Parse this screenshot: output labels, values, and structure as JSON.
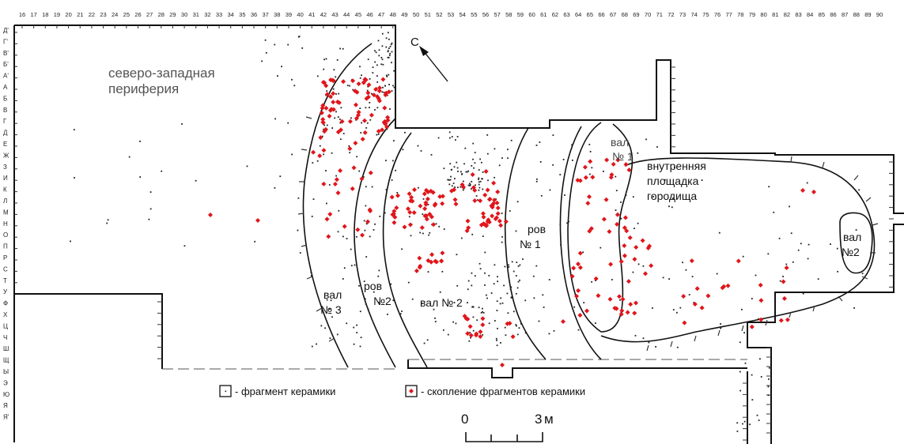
{
  "column_labels": [
    "16",
    "17",
    "18",
    "19",
    "20",
    "21",
    "22",
    "23",
    "24",
    "25",
    "26",
    "27",
    "28",
    "29",
    "30",
    "31",
    "32",
    "33",
    "34",
    "35",
    "36",
    "37",
    "38",
    "39",
    "40",
    "41",
    "42",
    "43",
    "44",
    "45",
    "46",
    "47",
    "48",
    "49",
    "50",
    "51",
    "52",
    "53",
    "54",
    "55",
    "56",
    "57",
    "58",
    "59",
    "60",
    "61",
    "62",
    "63",
    "64",
    "65",
    "66",
    "67",
    "68",
    "69",
    "70",
    "71",
    "72",
    "73",
    "74",
    "75",
    "76",
    "77",
    "78",
    "79",
    "80",
    "81",
    "82",
    "83",
    "84",
    "85",
    "86",
    "87",
    "88",
    "89",
    "90"
  ],
  "row_labels": [
    "Д'",
    "Г'",
    "В'",
    "Б'",
    "А'",
    "А",
    "Б",
    "В",
    "Г",
    "Д",
    "Е",
    "Ж",
    "З",
    "И",
    "К",
    "Л",
    "М",
    "Н",
    "О",
    "П",
    "Р",
    "С",
    "Т",
    "У",
    "Ф",
    "Х",
    "Ц",
    "Ч",
    "Ш",
    "Щ",
    "Ы",
    "Э",
    "Ю",
    "Я",
    "Я'"
  ],
  "north_label": "С",
  "areas": {
    "nw_periphery_line1": "северо-западная",
    "nw_periphery_line2": "периферия",
    "val3_line1": "вал",
    "val3_line2": "№ 3",
    "rov2_line1": "ров",
    "rov2_line2": "№2",
    "val2": "вал № 2",
    "rov1_line1": "ров",
    "rov1_line2": "№ 1",
    "val1_line1": "вал",
    "val1_line2": "№ 1",
    "inner_line1": "внутренняя",
    "inner_line2": "площадка",
    "inner_line3": "городища",
    "val2_east_line1": "вал",
    "val2_east_line2": "№2"
  },
  "legend": {
    "fragment": "- фрагмент керамики",
    "cluster": "- скопление фрагментов керамики"
  },
  "scale": {
    "zero": "0",
    "three": "3",
    "unit": "м"
  },
  "colors": {
    "line": "#111111",
    "cluster": "#e0161b",
    "fragment": "#222222"
  }
}
